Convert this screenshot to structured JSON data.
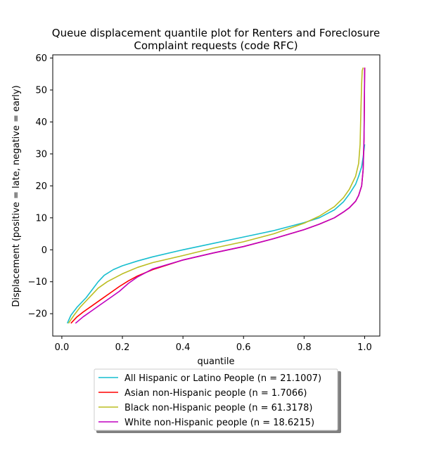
{
  "chart_data": {
    "type": "line",
    "title_line1": "Queue displacement quantile plot for Renters and Foreclosure",
    "title_line2": "Complaint  requests (code RFC)",
    "xlabel": "quantile",
    "ylabel": "Displacement (positive = late, negative = early)",
    "xlim": [
      -0.03,
      1.05
    ],
    "ylim": [
      -27,
      61
    ],
    "x_ticks": [
      0.0,
      0.2,
      0.4,
      0.6,
      0.8,
      1.0
    ],
    "x_tick_labels": [
      "0.0",
      "0.2",
      "0.4",
      "0.6",
      "0.8",
      "1.0"
    ],
    "y_ticks": [
      -20,
      -10,
      0,
      10,
      20,
      30,
      40,
      50,
      60
    ],
    "y_tick_labels": [
      "−20",
      "−10",
      "0",
      "10",
      "20",
      "30",
      "40",
      "50",
      "60"
    ],
    "grid": false,
    "legend_placement": "below plot",
    "series": [
      {
        "name": "All Hispanic or Latino People (n = 21.1007)",
        "color": "#17becf",
        "x": [
          0.018,
          0.03,
          0.05,
          0.08,
          0.1,
          0.12,
          0.14,
          0.17,
          0.2,
          0.25,
          0.3,
          0.4,
          0.5,
          0.6,
          0.7,
          0.8,
          0.85,
          0.9,
          0.93,
          0.95,
          0.97,
          0.98,
          0.99,
          0.995,
          1.0
        ],
        "y": [
          -23,
          -20.5,
          -18,
          -15,
          -12.5,
          -10,
          -8,
          -6.2,
          -5,
          -3.5,
          -2.2,
          0,
          2,
          4,
          6,
          8.5,
          10,
          12.5,
          15,
          17.5,
          20.5,
          23,
          26,
          29,
          33
        ]
      },
      {
        "name": "Asian non-Hispanic people (n = 1.7066)",
        "color": "#ff0000",
        "x": [
          0.03,
          0.05,
          0.07,
          0.1,
          0.13,
          0.16,
          0.19,
          0.22,
          0.25,
          0.3,
          0.4,
          0.5,
          0.6,
          0.7,
          0.8,
          0.85,
          0.9,
          0.93,
          0.95,
          0.97,
          0.98,
          0.99,
          0.995,
          0.998,
          1.0
        ],
        "y": [
          -23,
          -21,
          -19.5,
          -17.5,
          -15.5,
          -13.5,
          -11.5,
          -9.7,
          -8.2,
          -6.2,
          -3.2,
          -1,
          1,
          3.5,
          6.3,
          8,
          10,
          11.8,
          13.2,
          15.2,
          17,
          20,
          25,
          35,
          57
        ]
      },
      {
        "name": "Black non-Hispanic people (n = 61.3178)",
        "color": "#bcbd22",
        "x": [
          0.022,
          0.04,
          0.06,
          0.08,
          0.1,
          0.12,
          0.15,
          0.18,
          0.2,
          0.25,
          0.3,
          0.4,
          0.5,
          0.6,
          0.7,
          0.8,
          0.85,
          0.9,
          0.93,
          0.95,
          0.97,
          0.98,
          0.985,
          0.988,
          0.99,
          0.992,
          0.995
        ],
        "y": [
          -23,
          -20.5,
          -18,
          -16,
          -14,
          -12,
          -10,
          -8.5,
          -7.5,
          -5.5,
          -4,
          -1.8,
          0.5,
          2.5,
          5,
          8.3,
          10.5,
          13.5,
          16.3,
          19,
          23,
          27,
          33,
          45,
          52,
          56,
          57
        ]
      },
      {
        "name": "White non-Hispanic people (n = 18.6215)",
        "color": "#bf00bf",
        "x": [
          0.045,
          0.07,
          0.1,
          0.13,
          0.16,
          0.19,
          0.22,
          0.25,
          0.28,
          0.3,
          0.4,
          0.5,
          0.6,
          0.7,
          0.8,
          0.85,
          0.9,
          0.93,
          0.95,
          0.97,
          0.98,
          0.99,
          0.995,
          0.998,
          1.0
        ],
        "y": [
          -23,
          -21,
          -19,
          -17,
          -15,
          -13,
          -10.5,
          -8.5,
          -7,
          -6,
          -3.2,
          -1,
          1,
          3.5,
          6.3,
          8,
          10,
          11.8,
          13.2,
          15.2,
          17,
          20,
          25,
          35,
          57
        ]
      }
    ]
  }
}
